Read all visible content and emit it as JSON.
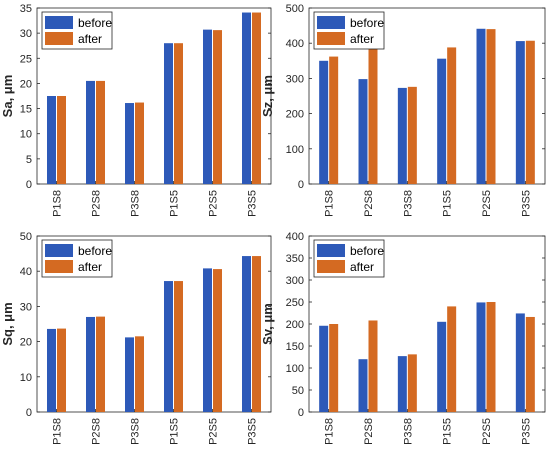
{
  "colors": {
    "before": "#2d59b8",
    "after": "#d46a22",
    "axis": "#262626"
  },
  "legend": {
    "before": "before",
    "after": "after"
  },
  "chart_data": [
    {
      "type": "bar",
      "ylabel": "Sa, μm",
      "ylim": [
        0,
        35
      ],
      "yticks": [
        "0",
        "5",
        "10",
        "15",
        "20",
        "25",
        "30",
        "35"
      ],
      "categories": [
        "P1S8",
        "P2S8",
        "P3S8",
        "P1S5",
        "P2S5",
        "P3S5"
      ],
      "series": [
        {
          "name": "before",
          "values": [
            17.5,
            20.5,
            16.1,
            28.0,
            30.7,
            34.1
          ]
        },
        {
          "name": "after",
          "values": [
            17.5,
            20.5,
            16.2,
            28.0,
            30.6,
            34.1
          ]
        }
      ],
      "legend_position": "top-left"
    },
    {
      "type": "bar",
      "ylabel": "Sz, μm",
      "ylim": [
        0,
        500
      ],
      "yticks": [
        "0",
        "100",
        "200",
        "300",
        "400",
        "500"
      ],
      "categories": [
        "P1S8",
        "P2S8",
        "P3S8",
        "P1S5",
        "P2S5",
        "P3S5"
      ],
      "series": [
        {
          "name": "before",
          "values": [
            350,
            298,
            273,
            356,
            441,
            406
          ]
        },
        {
          "name": "after",
          "values": [
            362,
            386,
            276,
            388,
            440,
            407
          ]
        }
      ],
      "legend_position": "top-left"
    },
    {
      "type": "bar",
      "ylabel": "Sq, μm",
      "ylim": [
        0,
        50
      ],
      "yticks": [
        "0",
        "10",
        "20",
        "30",
        "40",
        "50"
      ],
      "categories": [
        "P1S8",
        "P2S8",
        "P3S8",
        "P1S5",
        "P2S5",
        "P3S5"
      ],
      "series": [
        {
          "name": "before",
          "values": [
            23.6,
            27.0,
            21.2,
            37.2,
            40.8,
            44.3
          ]
        },
        {
          "name": "after",
          "values": [
            23.7,
            27.1,
            21.5,
            37.2,
            40.6,
            44.3
          ]
        }
      ],
      "legend_position": "top-left"
    },
    {
      "type": "bar",
      "ylabel": "Sv, μm",
      "ylim": [
        0,
        400
      ],
      "yticks": [
        "0",
        "50",
        "100",
        "150",
        "200",
        "250",
        "300",
        "350",
        "400"
      ],
      "categories": [
        "P1S8",
        "P2S8",
        "P3S8",
        "P1S5",
        "P2S5",
        "P3S5"
      ],
      "series": [
        {
          "name": "before",
          "values": [
            196,
            120,
            127,
            205,
            249,
            224
          ]
        },
        {
          "name": "after",
          "values": [
            200,
            208,
            131,
            240,
            250,
            216
          ]
        }
      ],
      "legend_position": "top-left"
    }
  ]
}
